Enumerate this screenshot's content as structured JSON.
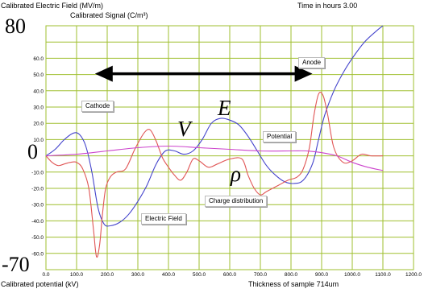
{
  "header": {
    "field_title": "Calibrated Electric Field (MV/m)",
    "signal_title": "Calibrated Signal (C/m³)",
    "time_label": "Time in hours",
    "time_value": "3.00"
  },
  "footer": {
    "potential_label": "Calibrated potential (kV)",
    "thickness_label": "Thickness of sample",
    "thickness_value": "714",
    "thickness_unit": "um"
  },
  "overlay": {
    "ytop": "80",
    "yzero": "0",
    "ybottom": "-70",
    "symbol_E": "E",
    "symbol_V": "V",
    "symbol_rho": "ρ"
  },
  "curve_labels": {
    "anode": "Anode",
    "cathode": "Cathode",
    "potential": "Potential",
    "charge": "Charge distribution",
    "efield": "Electric Field"
  },
  "chart_data": {
    "type": "line",
    "xlabel": "Thickness of sample 714 um",
    "ylabel": "Calibrated Electric Field (MV/m)",
    "xlim": [
      0,
      1200
    ],
    "ylim": [
      -70,
      80
    ],
    "xticks": [
      "0.0",
      "100.0",
      "200.0",
      "300.0",
      "400.0",
      "500.0",
      "600.0",
      "700.0",
      "800.0",
      "900.0",
      "1000.0",
      "1100.0",
      "1200.0"
    ],
    "yticks": [
      {
        "v": 60,
        "t": "60.0"
      },
      {
        "v": 50,
        "t": "50.0"
      },
      {
        "v": 40,
        "t": "40.0"
      },
      {
        "v": 30,
        "t": "30.0"
      },
      {
        "v": 20,
        "t": "20.0"
      },
      {
        "v": 10,
        "t": "10.0"
      },
      {
        "v": -10,
        "t": "-10.0"
      },
      {
        "v": -20,
        "t": "-20.0"
      },
      {
        "v": -30,
        "t": "-30.0"
      },
      {
        "v": -40,
        "t": "-40.0"
      },
      {
        "v": -50,
        "t": "-50.0"
      },
      {
        "v": -60,
        "t": "-60.0"
      }
    ],
    "grid": true,
    "colors": {
      "grid": "#9fbf2f",
      "electric_field": "#4444cc",
      "charge": "#e05555",
      "potential": "#cc44cc",
      "arrow": "#000000"
    },
    "series": [
      {
        "name": "Electric Field",
        "color": "#4444cc",
        "x": [
          0,
          30,
          60,
          90,
          110,
          130,
          150,
          170,
          190,
          210,
          240,
          270,
          300,
          330,
          360,
          390,
          420,
          450,
          480,
          510,
          540,
          570,
          600,
          630,
          660,
          690,
          720,
          750,
          780,
          810,
          840,
          870,
          890,
          910,
          940,
          970,
          1000,
          1040,
          1080,
          1100
        ],
        "y": [
          0,
          4,
          10,
          14,
          13,
          6,
          -10,
          -32,
          -42,
          -43,
          -41,
          -36,
          -28,
          -18,
          -5,
          3,
          3,
          1,
          3,
          10,
          20,
          23,
          22,
          19,
          12,
          3,
          -6,
          -12,
          -16,
          -17,
          -15,
          -5,
          10,
          25,
          40,
          51,
          60,
          70,
          77,
          80
        ]
      },
      {
        "name": "Charge distribution",
        "color": "#e05555",
        "x": [
          0,
          20,
          40,
          60,
          80,
          100,
          120,
          140,
          155,
          165,
          175,
          185,
          195,
          210,
          230,
          260,
          290,
          320,
          340,
          360,
          380,
          400,
          420,
          440,
          460,
          480,
          500,
          530,
          560,
          600,
          640,
          660,
          680,
          700,
          720,
          760,
          790,
          820,
          840,
          860,
          875,
          890,
          905,
          920,
          940,
          970,
          1000,
          1030,
          1060,
          1100
        ],
        "y": [
          0,
          -4,
          -6,
          -5,
          -4,
          -4,
          -8,
          -20,
          -45,
          -62,
          -55,
          -35,
          -20,
          -13,
          -10,
          -8,
          4,
          14,
          16,
          9,
          -1,
          -7,
          -12,
          -15,
          -10,
          -2,
          -3,
          -7,
          -5,
          -2,
          -2,
          -12,
          -20,
          -24,
          -22,
          -18,
          -15,
          -13,
          -8,
          5,
          25,
          38,
          37,
          25,
          5,
          -4,
          -3,
          1,
          0,
          0
        ]
      },
      {
        "name": "Potential",
        "color": "#cc44cc",
        "x": [
          0,
          100,
          200,
          300,
          400,
          500,
          600,
          700,
          800,
          850,
          900,
          950,
          1000,
          1050,
          1100
        ],
        "y": [
          0,
          1,
          3,
          5,
          6,
          5,
          4,
          3,
          3,
          3,
          2,
          0,
          -4,
          -7,
          -9
        ]
      }
    ]
  }
}
